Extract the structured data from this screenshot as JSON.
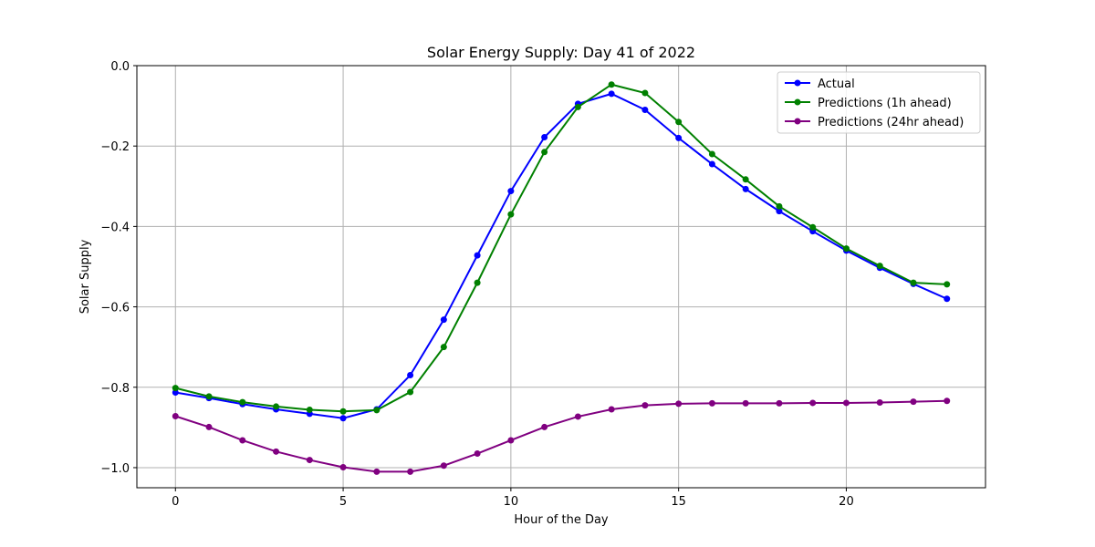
{
  "chart_data": {
    "type": "line",
    "title": "Solar Energy Supply: Day 41 of 2022",
    "xlabel": "Hour of the Day",
    "ylabel": "Solar Supply",
    "xlim": [
      -1.15,
      24.15
    ],
    "ylim": [
      -1.05,
      0.0
    ],
    "xticks": [
      0,
      5,
      10,
      15,
      20
    ],
    "yticks": [
      -1.0,
      -0.8,
      -0.6,
      -0.4,
      -0.2,
      0.0
    ],
    "ytick_labels": [
      "−1.0",
      "−0.8",
      "−0.6",
      "−0.4",
      "−0.2",
      "0.0"
    ],
    "grid": true,
    "legend_position": "top-right",
    "x": [
      0,
      1,
      2,
      3,
      4,
      5,
      6,
      7,
      8,
      9,
      10,
      11,
      12,
      13,
      14,
      15,
      16,
      17,
      18,
      19,
      20,
      21,
      22,
      23
    ],
    "series": [
      {
        "name": "Actual",
        "color": "#0000ff",
        "values": [
          -0.813,
          -0.827,
          -0.842,
          -0.855,
          -0.866,
          -0.877,
          -0.855,
          -0.77,
          -0.632,
          -0.472,
          -0.312,
          -0.178,
          -0.095,
          -0.07,
          -0.11,
          -0.18,
          -0.245,
          -0.307,
          -0.362,
          -0.412,
          -0.46,
          -0.503,
          -0.543,
          -0.58
        ]
      },
      {
        "name": "Predictions (1h ahead)",
        "color": "#008000",
        "values": [
          -0.802,
          -0.823,
          -0.837,
          -0.848,
          -0.856,
          -0.86,
          -0.857,
          -0.812,
          -0.7,
          -0.54,
          -0.37,
          -0.215,
          -0.103,
          -0.047,
          -0.068,
          -0.14,
          -0.22,
          -0.283,
          -0.35,
          -0.402,
          -0.455,
          -0.498,
          -0.54,
          -0.544
        ]
      },
      {
        "name": "Predictions (24hr ahead)",
        "color": "#800080",
        "values": [
          -0.872,
          -0.899,
          -0.932,
          -0.96,
          -0.981,
          -0.999,
          -1.01,
          -1.01,
          -0.995,
          -0.965,
          -0.932,
          -0.899,
          -0.873,
          -0.855,
          -0.845,
          -0.841,
          -0.84,
          -0.84,
          -0.84,
          -0.839,
          -0.839,
          -0.838,
          -0.836,
          -0.834
        ]
      }
    ]
  }
}
